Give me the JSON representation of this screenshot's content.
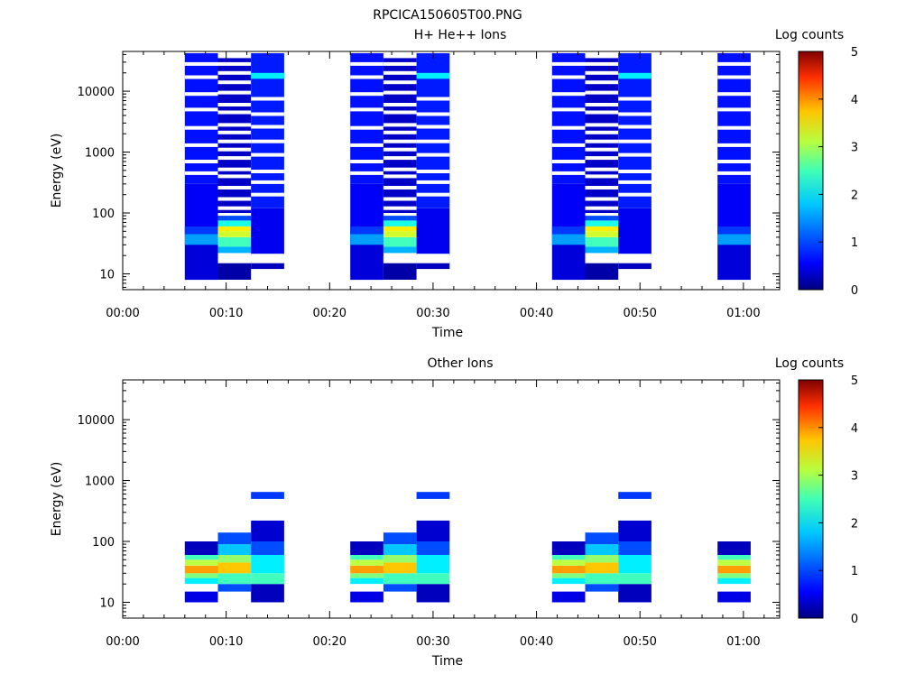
{
  "figure_title": "RPCICA150605T00.PNG",
  "chart_data": [
    {
      "type": "heatmap",
      "title": "H+ He++ Ions",
      "xlabel": "Time",
      "ylabel": "Energy (eV)",
      "x_ticks": [
        "00:00",
        "00:10",
        "00:20",
        "00:30",
        "00:40",
        "00:50",
        "01:00"
      ],
      "x_range_min": [
        0,
        63.5
      ],
      "y_scale": "log",
      "y_range_eV": [
        5.5,
        45000
      ],
      "y_ticks": [
        "10",
        "100",
        "1000",
        "10000"
      ],
      "y_tick_values": [
        10,
        100,
        1000,
        10000
      ],
      "colorbar": {
        "label": "Log counts",
        "range": [
          0,
          5
        ],
        "ticks": [
          "0",
          "1",
          "2",
          "3",
          "4",
          "5"
        ]
      },
      "time_bins_min": [
        [
          6,
          9.2
        ],
        [
          9.2,
          12.4
        ],
        [
          12.4,
          15.6
        ],
        [
          22,
          25.2
        ],
        [
          25.2,
          28.4
        ],
        [
          28.4,
          31.6
        ],
        [
          41.5,
          44.7
        ],
        [
          44.7,
          47.9
        ],
        [
          47.9,
          51.1
        ],
        [
          57.5,
          60.7
        ]
      ],
      "columns": [
        {
          "bands": [
            [
              8,
              40,
              0.45
            ],
            [
              40,
              300,
              0.6
            ],
            [
              300,
              42000,
              0.7
            ],
            [
              30,
              45,
              1.4
            ],
            [
              45,
              60,
              0.9
            ]
          ],
          "gaps": [
            450,
            700,
            1300,
            2500,
            5000,
            9000,
            17000,
            28000
          ]
        },
        {
          "bands": [
            [
              8,
              16,
              0.2
            ],
            [
              22,
              28,
              1.5
            ],
            [
              28,
              40,
              2.2
            ],
            [
              40,
              50,
              2.9
            ],
            [
              50,
              60,
              3.2
            ],
            [
              60,
              75,
              2.0
            ],
            [
              75,
              90,
              1.0
            ],
            [
              100,
              35000,
              0.35
            ]
          ],
          "gaps": [
            16,
            18,
            120,
            170,
            260,
            400,
            520,
            800,
            1100,
            1500,
            2100,
            2800,
            4500,
            6000,
            9500,
            14000,
            20000,
            28000
          ]
        },
        {
          "bands": [
            [
              12,
              16,
              0.3
            ],
            [
              20,
              120,
              0.55
            ],
            [
              120,
              42000,
              0.75
            ],
            [
              16000,
              20000,
              1.8
            ]
          ],
          "gaps": [
            16,
            20,
            200,
            320,
            480,
            900,
            1500,
            2600,
            4200,
            7500
          ]
        }
      ]
    },
    {
      "type": "heatmap",
      "title": "Other Ions",
      "xlabel": "Time",
      "ylabel": "Energy (eV)",
      "x_ticks": [
        "00:00",
        "00:10",
        "00:20",
        "00:30",
        "00:40",
        "00:50",
        "01:00"
      ],
      "x_range_min": [
        0,
        63.5
      ],
      "y_scale": "log",
      "y_range_eV": [
        5.5,
        45000
      ],
      "y_ticks": [
        "10",
        "100",
        "1000",
        "10000"
      ],
      "y_tick_values": [
        10,
        100,
        1000,
        10000
      ],
      "colorbar": {
        "label": "Log counts",
        "range": [
          0,
          5
        ],
        "ticks": [
          "0",
          "1",
          "2",
          "3",
          "4",
          "5"
        ]
      },
      "columns": [
        {
          "bands": [
            [
              10,
              15,
              0.5
            ],
            [
              20,
              25,
              1.8
            ],
            [
              25,
              30,
              2.5
            ],
            [
              30,
              40,
              3.6
            ],
            [
              40,
              50,
              2.8
            ],
            [
              50,
              60,
              2.2
            ],
            [
              60,
              100,
              0.3
            ]
          ]
        },
        {
          "bands": [
            [
              15,
              20,
              1.0
            ],
            [
              20,
              30,
              2.2
            ],
            [
              30,
              45,
              3.4
            ],
            [
              45,
              60,
              2.6
            ],
            [
              60,
              90,
              1.6
            ],
            [
              90,
              140,
              1.0
            ]
          ]
        },
        {
          "bands": [
            [
              10,
              20,
              0.3
            ],
            [
              20,
              30,
              2.2
            ],
            [
              30,
              60,
              1.8
            ],
            [
              60,
              100,
              1.0
            ],
            [
              100,
              220,
              0.4
            ],
            [
              500,
              650,
              0.9
            ]
          ]
        }
      ]
    }
  ]
}
